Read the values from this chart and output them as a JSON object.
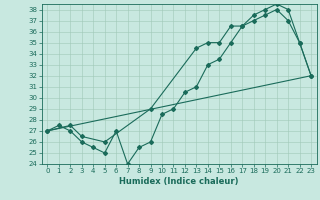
{
  "xlabel": "Humidex (Indice chaleur)",
  "background_color": "#c8e8e0",
  "line_color": "#1a6b5a",
  "grid_color": "#a0c8b8",
  "xlim": [
    -0.5,
    23.5
  ],
  "ylim": [
    24,
    38.5
  ],
  "yticks": [
    24,
    25,
    26,
    27,
    28,
    29,
    30,
    31,
    32,
    33,
    34,
    35,
    36,
    37,
    38
  ],
  "xticks": [
    0,
    1,
    2,
    3,
    4,
    5,
    6,
    7,
    8,
    9,
    10,
    11,
    12,
    13,
    14,
    15,
    16,
    17,
    18,
    19,
    20,
    21,
    22,
    23
  ],
  "series1_x": [
    0,
    1,
    2,
    3,
    4,
    5,
    6,
    7,
    8,
    9,
    10,
    11,
    12,
    13,
    14,
    15,
    16,
    17,
    18,
    19,
    20,
    21,
    22,
    23
  ],
  "series1_y": [
    27,
    27.5,
    27,
    26,
    25.5,
    25,
    27,
    24,
    25.5,
    26,
    28.5,
    29,
    30.5,
    31,
    33,
    33.5,
    35,
    36.5,
    37,
    37.5,
    38,
    37,
    35,
    32
  ],
  "series2_x": [
    0,
    2,
    3,
    5,
    9,
    13,
    14,
    15,
    16,
    17,
    18,
    19,
    20,
    21,
    22,
    23
  ],
  "series2_y": [
    27,
    27.5,
    26.5,
    26,
    29,
    34.5,
    35,
    35,
    36.5,
    36.5,
    37.5,
    38,
    38.5,
    38,
    35,
    32
  ],
  "series3_x": [
    0,
    23
  ],
  "series3_y": [
    27,
    32
  ],
  "tick_fontsize": 5,
  "xlabel_fontsize": 6,
  "linewidth": 0.8,
  "markersize": 2.0
}
